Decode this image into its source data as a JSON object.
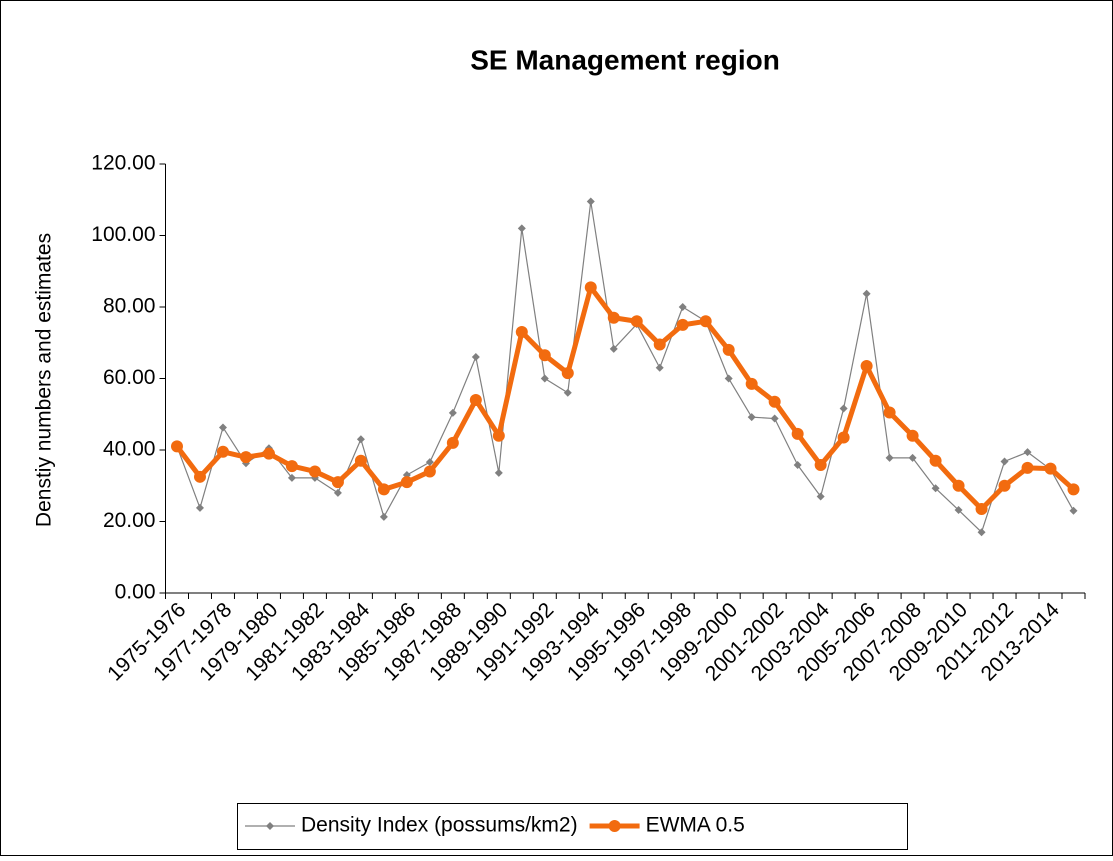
{
  "chart_data": {
    "type": "line",
    "title": "SE Management region",
    "y_label": "Denstiy numbers and estimates",
    "categories": [
      "1975-1976",
      null,
      "1977-1978",
      null,
      "1979-1980",
      null,
      "1981-1982",
      null,
      "1983-1984",
      null,
      "1985-1986",
      null,
      "1987-1988",
      null,
      "1989-1990",
      null,
      "1991-1992",
      null,
      "1993-1994",
      null,
      "1995-1996",
      null,
      "1997-1998",
      null,
      "1999-2000",
      null,
      "2001-2002",
      null,
      "2003-2004",
      null,
      "2005-2006",
      null,
      "2007-2008",
      null,
      "2009-2010",
      null,
      "2011-2012",
      null,
      "2013-2014",
      null
    ],
    "series": [
      {
        "name": "Density Index (possums/km2)",
        "color": "#808080",
        "values": [
          41,
          23.8,
          46.3,
          36.3,
          40.5,
          32.2,
          32.2,
          28,
          43,
          21.3,
          33,
          36.6,
          50.4,
          66,
          33.6,
          102,
          60,
          56,
          109.5,
          68.3,
          75.2,
          63,
          80,
          76,
          60,
          49.2,
          48.8,
          35.8,
          27,
          51.6,
          83.7,
          37.8,
          37.8,
          29.3,
          23.2,
          17,
          36.8,
          39.4,
          34.6,
          23
        ]
      },
      {
        "name": "EWMA 0.5",
        "color": "#f26b0f",
        "values": [
          41,
          32.5,
          39.5,
          38,
          39,
          35.5,
          34,
          31,
          37,
          29,
          31,
          34,
          42,
          54,
          44,
          73,
          66.5,
          61.5,
          85.5,
          77,
          76,
          69.5,
          75,
          76,
          68,
          58.5,
          53.5,
          44.5,
          35.8,
          43.5,
          63.5,
          50.5,
          44,
          37,
          30,
          23.5,
          30,
          35,
          34.8,
          29
        ]
      }
    ],
    "ylim": [
      0,
      120
    ],
    "yticks": [
      {
        "value": 0,
        "label": "0.00"
      },
      {
        "value": 20,
        "label": "20.00"
      },
      {
        "value": 40,
        "label": "40.00"
      },
      {
        "value": 60,
        "label": "60.00"
      },
      {
        "value": 80,
        "label": "80.00"
      },
      {
        "value": 100,
        "label": "100.00"
      },
      {
        "value": 120,
        "label": "120.00"
      }
    ],
    "grid": false,
    "legend": "bottom"
  }
}
